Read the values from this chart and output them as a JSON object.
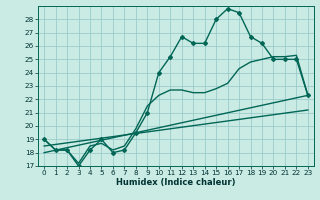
{
  "xlabel": "Humidex (Indice chaleur)",
  "background_color": "#caeae4",
  "grid_color": "#99cccc",
  "line_color": "#006655",
  "xlim": [
    -0.5,
    23.5
  ],
  "ylim": [
    17,
    29
  ],
  "yticks": [
    17,
    18,
    19,
    20,
    21,
    22,
    23,
    24,
    25,
    26,
    27,
    28
  ],
  "xticks": [
    0,
    1,
    2,
    3,
    4,
    5,
    6,
    7,
    8,
    9,
    10,
    11,
    12,
    13,
    14,
    15,
    16,
    17,
    18,
    19,
    20,
    21,
    22,
    23
  ],
  "series": [
    {
      "x": [
        0,
        1,
        2,
        3,
        4,
        5,
        6,
        7,
        8,
        9,
        10,
        11,
        12,
        13,
        14,
        15,
        16,
        17,
        18,
        19,
        20,
        21,
        22,
        23
      ],
      "y": [
        19.0,
        18.2,
        18.2,
        17.0,
        18.2,
        19.0,
        18.0,
        18.2,
        19.5,
        21.0,
        24.0,
        25.2,
        26.7,
        26.2,
        26.2,
        28.0,
        28.8,
        28.5,
        26.7,
        26.2,
        25.0,
        25.0,
        25.0,
        22.3
      ],
      "marker": "D",
      "markersize": 2.0,
      "linewidth": 1.0
    },
    {
      "x": [
        0,
        1,
        2,
        3,
        4,
        5,
        6,
        7,
        8,
        9,
        10,
        11,
        12,
        13,
        14,
        15,
        16,
        17,
        18,
        19,
        20,
        21,
        22,
        23
      ],
      "y": [
        19.0,
        18.2,
        18.2,
        17.2,
        18.5,
        18.7,
        18.2,
        18.5,
        19.8,
        21.5,
        22.3,
        22.7,
        22.7,
        22.5,
        22.5,
        22.8,
        23.2,
        24.3,
        24.8,
        25.0,
        25.2,
        25.2,
        25.3,
        22.3
      ],
      "marker": null,
      "markersize": 0,
      "linewidth": 1.0
    },
    {
      "x": [
        0,
        23
      ],
      "y": [
        18.0,
        22.3
      ],
      "marker": null,
      "markersize": 0,
      "linewidth": 1.0
    },
    {
      "x": [
        0,
        23
      ],
      "y": [
        18.5,
        21.2
      ],
      "marker": null,
      "markersize": 0,
      "linewidth": 1.0
    }
  ]
}
